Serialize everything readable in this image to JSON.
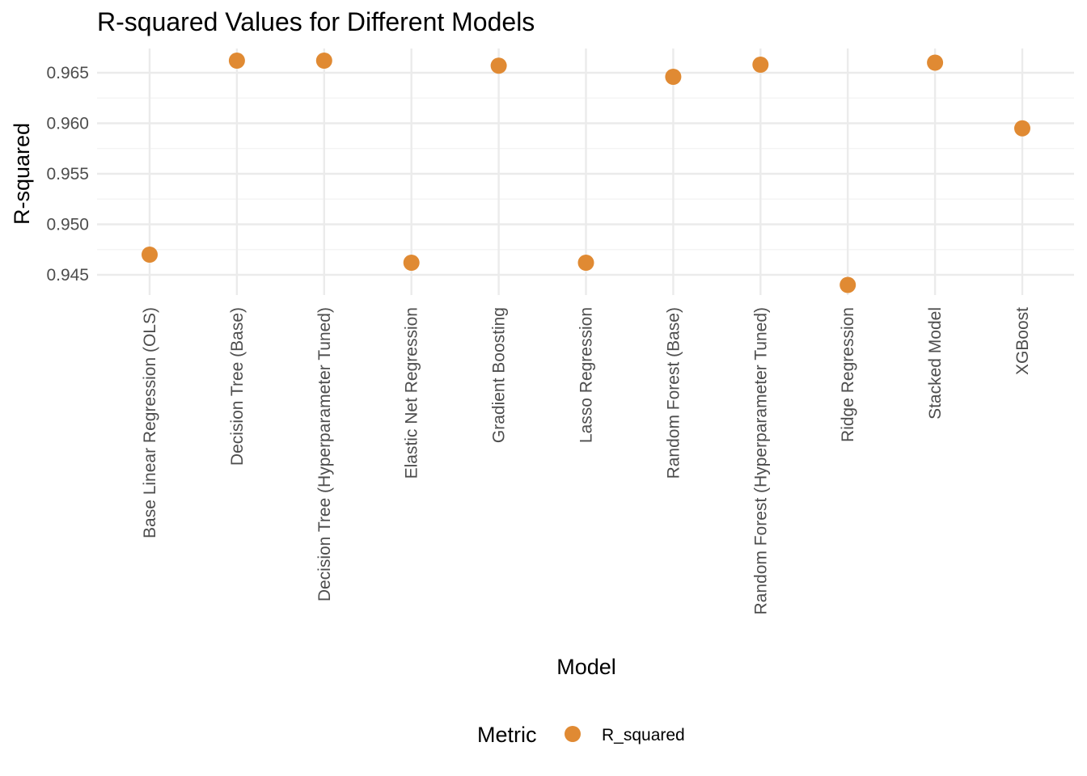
{
  "chart_data": {
    "type": "scatter",
    "title": "R-squared Values for Different Models",
    "xlabel": "Model",
    "ylabel": "R-squared",
    "categories": [
      "Base Linear Regression (OLS)",
      "Decision Tree (Base)",
      "Decision Tree (Hyperparameter Tuned)",
      "Elastic Net Regression",
      "Gradient Boosting",
      "Lasso Regression",
      "Random Forest (Base)",
      "Random Forest (Hyperparameter Tuned)",
      "Ridge Regression",
      "Stacked Model",
      "XGBoost"
    ],
    "series": [
      {
        "name": "R_squared",
        "color": "#E08A33",
        "values": [
          0.947,
          0.9662,
          0.9662,
          0.9462,
          0.9657,
          0.9462,
          0.9646,
          0.9658,
          0.944,
          0.966,
          0.9595
        ]
      }
    ],
    "yticks": [
      "0.945",
      "0.950",
      "0.955",
      "0.960",
      "0.965"
    ],
    "ylim": [
      0.9433,
      0.9669
    ],
    "grid": true,
    "legend": {
      "title": "Metric",
      "position": "bottom"
    }
  }
}
